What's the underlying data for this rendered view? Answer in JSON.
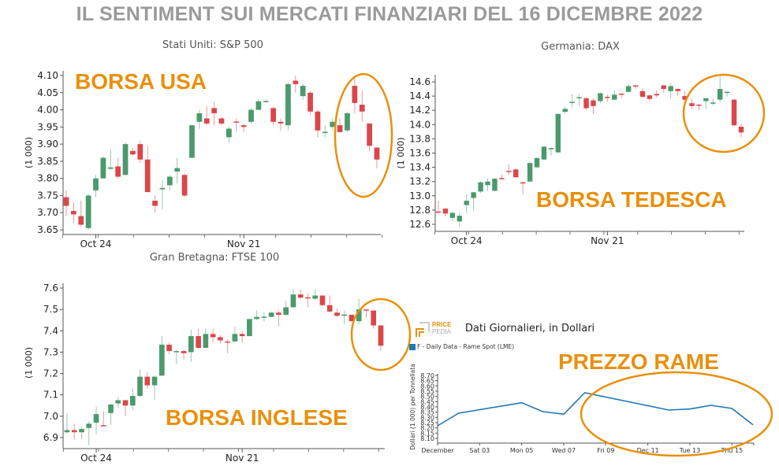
{
  "title": "IL SENTIMENT SUI MERCATI FINANZIARI DEL 16 DICEMBRE 2022",
  "annotations": {
    "usa": "BORSA USA",
    "germany": "BORSA TEDESCA",
    "uk": "BORSA INGLESE",
    "copper": "PREZZO RAME",
    "highlight_color": "#e8900c"
  },
  "logo": {
    "line1": "PRICE",
    "line2": "PEDIA"
  },
  "colors": {
    "up": "#4a9a6c",
    "down": "#d9474a",
    "line": "#1f77b4"
  },
  "chart_data": [
    {
      "type": "candlestick",
      "title": "Stati Uniti: S&P 500",
      "ylabel": "(1 000)",
      "ylim": [
        3.65,
        4.1
      ],
      "yticks": [
        3.65,
        3.7,
        3.75,
        3.8,
        3.85,
        3.9,
        3.95,
        4.0,
        4.05,
        4.1
      ],
      "xticks": [
        {
          "index": 4,
          "label": "Oct 24"
        },
        {
          "index": 24,
          "label": "Nov 21"
        }
      ],
      "candles": [
        [
          3.745,
          3.765,
          3.69,
          3.72
        ],
        [
          3.705,
          3.73,
          3.67,
          3.695
        ],
        [
          3.69,
          3.735,
          3.66,
          3.665
        ],
        [
          3.655,
          3.755,
          3.65,
          3.75
        ],
        [
          3.765,
          3.81,
          3.745,
          3.8
        ],
        [
          3.8,
          3.865,
          3.8,
          3.86
        ],
        [
          3.828,
          3.885,
          3.825,
          3.832
        ],
        [
          3.835,
          3.86,
          3.8,
          3.805
        ],
        [
          3.81,
          3.905,
          3.81,
          3.9
        ],
        [
          3.88,
          3.89,
          3.865,
          3.87
        ],
        [
          3.9,
          3.91,
          3.845,
          3.855
        ],
        [
          3.855,
          3.895,
          3.76,
          3.76
        ],
        [
          3.735,
          3.75,
          3.7,
          3.72
        ],
        [
          3.768,
          3.795,
          3.71,
          3.772
        ],
        [
          3.78,
          3.81,
          3.765,
          3.805
        ],
        [
          3.82,
          3.86,
          3.785,
          3.83
        ],
        [
          3.81,
          3.815,
          3.745,
          3.75
        ],
        [
          3.86,
          3.957,
          3.86,
          3.955
        ],
        [
          3.965,
          4.0,
          3.945,
          3.99
        ],
        [
          3.975,
          4.01,
          3.955,
          3.96
        ],
        [
          4.005,
          4.025,
          3.955,
          3.99
        ],
        [
          3.975,
          3.98,
          3.955,
          3.96
        ],
        [
          3.92,
          3.95,
          3.905,
          3.945
        ],
        [
          3.966,
          3.975,
          3.935,
          3.964
        ],
        [
          3.955,
          3.96,
          3.935,
          3.95
        ],
        [
          3.965,
          4.005,
          3.96,
          4.0
        ],
        [
          4.0,
          4.03,
          4.0,
          4.025
        ],
        [
          4.024,
          4.03,
          4.02,
          4.026
        ],
        [
          4.005,
          4.01,
          3.955,
          3.965
        ],
        [
          3.965,
          3.975,
          3.94,
          3.96
        ],
        [
          3.955,
          4.08,
          3.94,
          4.075
        ],
        [
          4.085,
          4.1,
          4.05,
          4.075
        ],
        [
          4.04,
          4.075,
          4.03,
          4.07
        ],
        [
          4.05,
          4.055,
          3.985,
          3.995
        ],
        [
          3.995,
          4.0,
          3.92,
          3.94
        ],
        [
          3.934,
          3.955,
          3.92,
          3.936
        ],
        [
          3.95,
          3.975,
          3.94,
          3.965
        ],
        [
          3.955,
          3.975,
          3.935,
          3.935
        ],
        [
          3.94,
          3.995,
          3.935,
          3.99
        ],
        [
          4.07,
          4.1,
          3.99,
          4.02
        ],
        [
          4.015,
          4.055,
          3.965,
          3.995
        ],
        [
          3.96,
          3.96,
          3.88,
          3.895
        ],
        [
          3.89,
          3.89,
          3.83,
          3.855
        ]
      ]
    },
    {
      "type": "candlestick",
      "title": "Germania: DAX",
      "ylabel": "(1 000)",
      "ylim": [
        12.55,
        14.7
      ],
      "yticks": [
        12.6,
        12.8,
        13.0,
        13.2,
        13.4,
        13.6,
        13.8,
        14.0,
        14.2,
        14.4,
        14.6
      ],
      "xticks": [
        {
          "index": 4,
          "label": "Oct 24"
        },
        {
          "index": 24,
          "label": "Nov 21"
        }
      ],
      "candles": [
        [
          12.78,
          12.93,
          12.75,
          12.77
        ],
        [
          12.82,
          12.83,
          12.71,
          12.75
        ],
        [
          12.69,
          12.77,
          12.64,
          12.76
        ],
        [
          12.64,
          12.76,
          12.56,
          12.72
        ],
        [
          12.87,
          13.02,
          12.76,
          12.93
        ],
        [
          12.97,
          13.05,
          12.79,
          13.05
        ],
        [
          13.06,
          13.2,
          13.04,
          13.19
        ],
        [
          13.15,
          13.25,
          13.07,
          13.2
        ],
        [
          13.07,
          13.25,
          13.06,
          13.24
        ],
        [
          13.25,
          13.3,
          13.22,
          13.24
        ],
        [
          13.35,
          13.44,
          13.29,
          13.34
        ],
        [
          13.37,
          13.39,
          13.26,
          13.26
        ],
        [
          13.19,
          13.19,
          13.02,
          13.18
        ],
        [
          13.2,
          13.48,
          13.2,
          13.46
        ],
        [
          13.4,
          13.54,
          13.39,
          13.53
        ],
        [
          13.51,
          13.7,
          13.5,
          13.69
        ],
        [
          13.66,
          13.68,
          13.56,
          13.67
        ],
        [
          13.61,
          14.15,
          13.6,
          14.15
        ],
        [
          14.18,
          14.25,
          14.16,
          14.22
        ],
        [
          14.31,
          14.43,
          14.24,
          14.32
        ],
        [
          14.38,
          14.43,
          14.26,
          14.385
        ],
        [
          14.37,
          14.38,
          14.21,
          14.23
        ],
        [
          14.34,
          14.37,
          14.15,
          14.26
        ],
        [
          14.33,
          14.45,
          14.3,
          14.44
        ],
        [
          14.39,
          14.42,
          14.32,
          14.38
        ],
        [
          14.35,
          14.48,
          14.34,
          14.42
        ],
        [
          14.435,
          14.44,
          14.37,
          14.43
        ],
        [
          14.46,
          14.57,
          14.45,
          14.54
        ],
        [
          14.55,
          14.56,
          14.5,
          14.54
        ],
        [
          14.47,
          14.51,
          14.38,
          14.39
        ],
        [
          14.41,
          14.42,
          14.33,
          14.36
        ],
        [
          14.43,
          14.48,
          14.38,
          14.41
        ],
        [
          14.55,
          14.56,
          14.45,
          14.5
        ],
        [
          14.47,
          14.58,
          14.37,
          14.54
        ],
        [
          14.5,
          14.51,
          14.4,
          14.47
        ],
        [
          14.4,
          14.47,
          14.34,
          14.35
        ],
        [
          14.3,
          14.36,
          14.22,
          14.26
        ],
        [
          14.28,
          14.29,
          14.2,
          14.27
        ],
        [
          14.33,
          14.37,
          14.22,
          14.37
        ],
        [
          14.3,
          14.36,
          14.27,
          14.31
        ],
        [
          14.35,
          14.67,
          14.31,
          14.5
        ],
        [
          14.455,
          14.47,
          14.39,
          14.46
        ],
        [
          14.35,
          14.36,
          13.98,
          13.99
        ],
        [
          13.97,
          14.01,
          13.82,
          13.89
        ]
      ]
    },
    {
      "type": "candlestick",
      "title": "Gran Bretagna: FTSE 100",
      "ylabel": "(1 000)",
      "ylim": [
        6.86,
        7.62
      ],
      "yticks": [
        6.9,
        7.0,
        7.1,
        7.2,
        7.3,
        7.4,
        7.5,
        7.6
      ],
      "xticks": [
        {
          "index": 4,
          "label": "Oct 24"
        },
        {
          "index": 24,
          "label": "Nov 21"
        }
      ],
      "candles": [
        [
          6.925,
          7.015,
          6.92,
          6.935
        ],
        [
          6.935,
          6.965,
          6.89,
          6.925
        ],
        [
          6.925,
          6.95,
          6.895,
          6.94
        ],
        [
          6.945,
          6.975,
          6.865,
          6.965
        ],
        [
          6.97,
          7.045,
          6.915,
          7.01
        ],
        [
          6.958,
          7.025,
          6.95,
          6.955
        ],
        [
          7.015,
          7.055,
          6.96,
          7.055
        ],
        [
          7.06,
          7.09,
          7.04,
          7.075
        ],
        [
          7.075,
          7.075,
          7.0,
          7.05
        ],
        [
          7.05,
          7.13,
          7.03,
          7.095
        ],
        [
          7.095,
          7.22,
          7.09,
          7.185
        ],
        [
          7.185,
          7.205,
          7.13,
          7.145
        ],
        [
          7.145,
          7.19,
          7.075,
          7.185
        ],
        [
          7.19,
          7.375,
          7.19,
          7.335
        ],
        [
          7.335,
          7.345,
          7.29,
          7.305
        ],
        [
          7.3,
          7.31,
          7.245,
          7.305
        ],
        [
          7.305,
          7.31,
          7.265,
          7.295
        ],
        [
          7.3,
          7.405,
          7.255,
          7.375
        ],
        [
          7.375,
          7.41,
          7.315,
          7.32
        ],
        [
          7.32,
          7.41,
          7.32,
          7.385
        ],
        [
          7.385,
          7.41,
          7.345,
          7.37
        ],
        [
          7.37,
          7.38,
          7.34,
          7.355
        ],
        [
          7.35,
          7.36,
          7.295,
          7.345
        ],
        [
          7.35,
          7.42,
          7.345,
          7.385
        ],
        [
          7.385,
          7.4,
          7.345,
          7.375
        ],
        [
          7.375,
          7.455,
          7.375,
          7.455
        ],
        [
          7.455,
          7.495,
          7.45,
          7.465
        ],
        [
          7.464,
          7.485,
          7.445,
          7.466
        ],
        [
          7.465,
          7.49,
          7.465,
          7.485
        ],
        [
          7.485,
          7.495,
          7.42,
          7.475
        ],
        [
          7.475,
          7.54,
          7.47,
          7.51
        ],
        [
          7.51,
          7.595,
          7.51,
          7.57
        ],
        [
          7.57,
          7.595,
          7.55,
          7.555
        ],
        [
          7.557,
          7.575,
          7.51,
          7.555
        ],
        [
          7.55,
          7.595,
          7.545,
          7.565
        ],
        [
          7.565,
          7.565,
          7.515,
          7.52
        ],
        [
          7.52,
          7.565,
          7.485,
          7.49
        ],
        [
          7.485,
          7.505,
          7.465,
          7.47
        ],
        [
          7.474,
          7.495,
          7.43,
          7.476
        ],
        [
          7.475,
          7.475,
          7.44,
          7.445
        ],
        [
          7.445,
          7.55,
          7.43,
          7.5
        ],
        [
          7.5,
          7.5,
          7.46,
          7.495
        ],
        [
          7.495,
          7.495,
          7.41,
          7.425
        ],
        [
          7.425,
          7.425,
          7.305,
          7.33
        ]
      ]
    },
    {
      "type": "line",
      "title": "Dati Giornalieri, in Dollari",
      "ylabel": "Dollari (1 000) per Tonnellata",
      "legend": "F - Daily Data - Rame Spot (LME)",
      "legend_position": "top-left",
      "ylim": [
        8.05,
        8.7
      ],
      "yticks": [
        "8.10",
        "8.15",
        "8.20",
        "8.25",
        "8.30",
        "8.35",
        "8.40",
        "8.45",
        "8.50",
        "8.55",
        "8.60",
        "8.65",
        "8.70"
      ],
      "xlim": [
        "2022-12-01",
        "2022-12-16"
      ],
      "xticks": [
        {
          "date": "2022-12-01",
          "label": "December"
        },
        {
          "date": "2022-12-03",
          "label": "Sat 03"
        },
        {
          "date": "2022-12-05",
          "label": "Mon 05"
        },
        {
          "date": "2022-12-07",
          "label": "Wed 07"
        },
        {
          "date": "2022-12-09",
          "label": "Fri 09"
        },
        {
          "date": "2022-12-11",
          "label": "Dec 11"
        },
        {
          "date": "2022-12-13",
          "label": "Tue 13"
        },
        {
          "date": "2022-12-15",
          "label": "Thu 15"
        }
      ],
      "x": [
        "2022-12-01",
        "2022-12-02",
        "2022-12-05",
        "2022-12-06",
        "2022-12-07",
        "2022-12-08",
        "2022-12-12",
        "2022-12-13",
        "2022-12-14",
        "2022-12-15",
        "2022-12-16"
      ],
      "y": [
        8.22,
        8.34,
        8.44,
        8.355,
        8.33,
        8.535,
        8.37,
        8.38,
        8.415,
        8.385,
        8.23
      ]
    }
  ]
}
